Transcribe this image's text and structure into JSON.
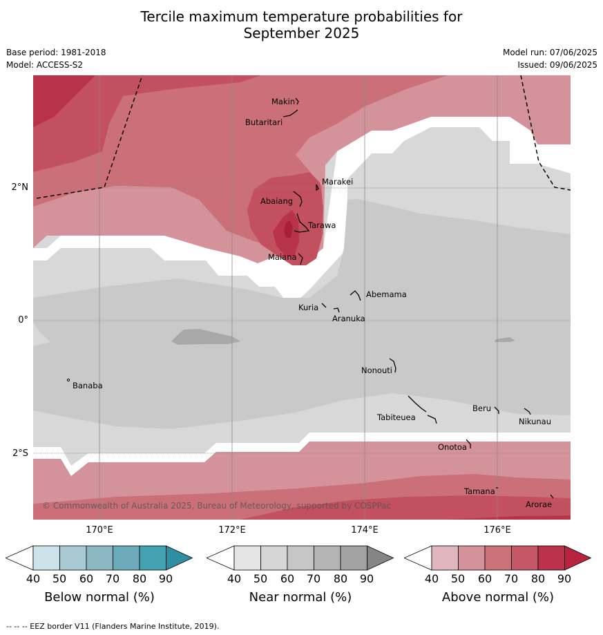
{
  "title": {
    "line1": "Tercile maximum temperature probabilities for",
    "line2": "September 2025"
  },
  "meta": {
    "base_period": "Base period: 1981-2018",
    "model": "Model: ACCESS-S2",
    "model_run": "Model run: 07/06/2025",
    "issued": "Issued: 09/06/2025"
  },
  "map": {
    "copyright": "© Commonwealth of Australia 2025, Bureau of Meteorology, supported by COSPPac",
    "lat_labels": [
      "2°N",
      "0°",
      "2°S"
    ],
    "lon_labels": [
      "170°E",
      "172°E",
      "174°E",
      "176°E"
    ],
    "places": [
      "Makin",
      "Butaritari",
      "Marakei",
      "Abaiang",
      "Tarawa",
      "Maiana",
      "Abemama",
      "Kuria",
      "Aranuka",
      "Banaba",
      "Nonouti",
      "Tabiteuea",
      "Beru",
      "Nikunau",
      "Onotoa",
      "Tamana",
      "Arorae"
    ],
    "colors": {
      "near_40_50": "#e4e4e4",
      "near_50_60": "#d8d8d8",
      "near_60_70": "#c9c9c9",
      "near_70_80": "#a8a8a8",
      "above_50_60": "#d4939a",
      "above_60_70": "#cb6f78",
      "above_70_80": "#c2505e",
      "above_80_90": "#b83348",
      "eez_border": "#000000",
      "gridline": "#8a8a8a"
    }
  },
  "colorbars": [
    {
      "title": "Below normal (%)",
      "ticks": [
        "40",
        "50",
        "60",
        "70",
        "80",
        "90"
      ],
      "colors": [
        "#ffffff",
        "#cde3ea",
        "#a9cad2",
        "#8cb8c4",
        "#6baab8",
        "#44a1b0",
        "#2e8fa3"
      ]
    },
    {
      "title": "Near normal (%)",
      "ticks": [
        "40",
        "50",
        "60",
        "70",
        "80",
        "90"
      ],
      "colors": [
        "#ffffff",
        "#e4e4e4",
        "#d6d6d6",
        "#c6c6c6",
        "#b4b4b4",
        "#a2a2a2",
        "#858585"
      ]
    },
    {
      "title": "Above normal (%)",
      "ticks": [
        "40",
        "50",
        "60",
        "70",
        "80",
        "90"
      ],
      "colors": [
        "#ffffff",
        "#e0b5bb",
        "#d4939a",
        "#cb717a",
        "#c45866",
        "#b9314b",
        "#b8243f"
      ]
    }
  ],
  "footnote": "--  --  -- EEZ border V11 (Flanders Marine Institute, 2019)."
}
